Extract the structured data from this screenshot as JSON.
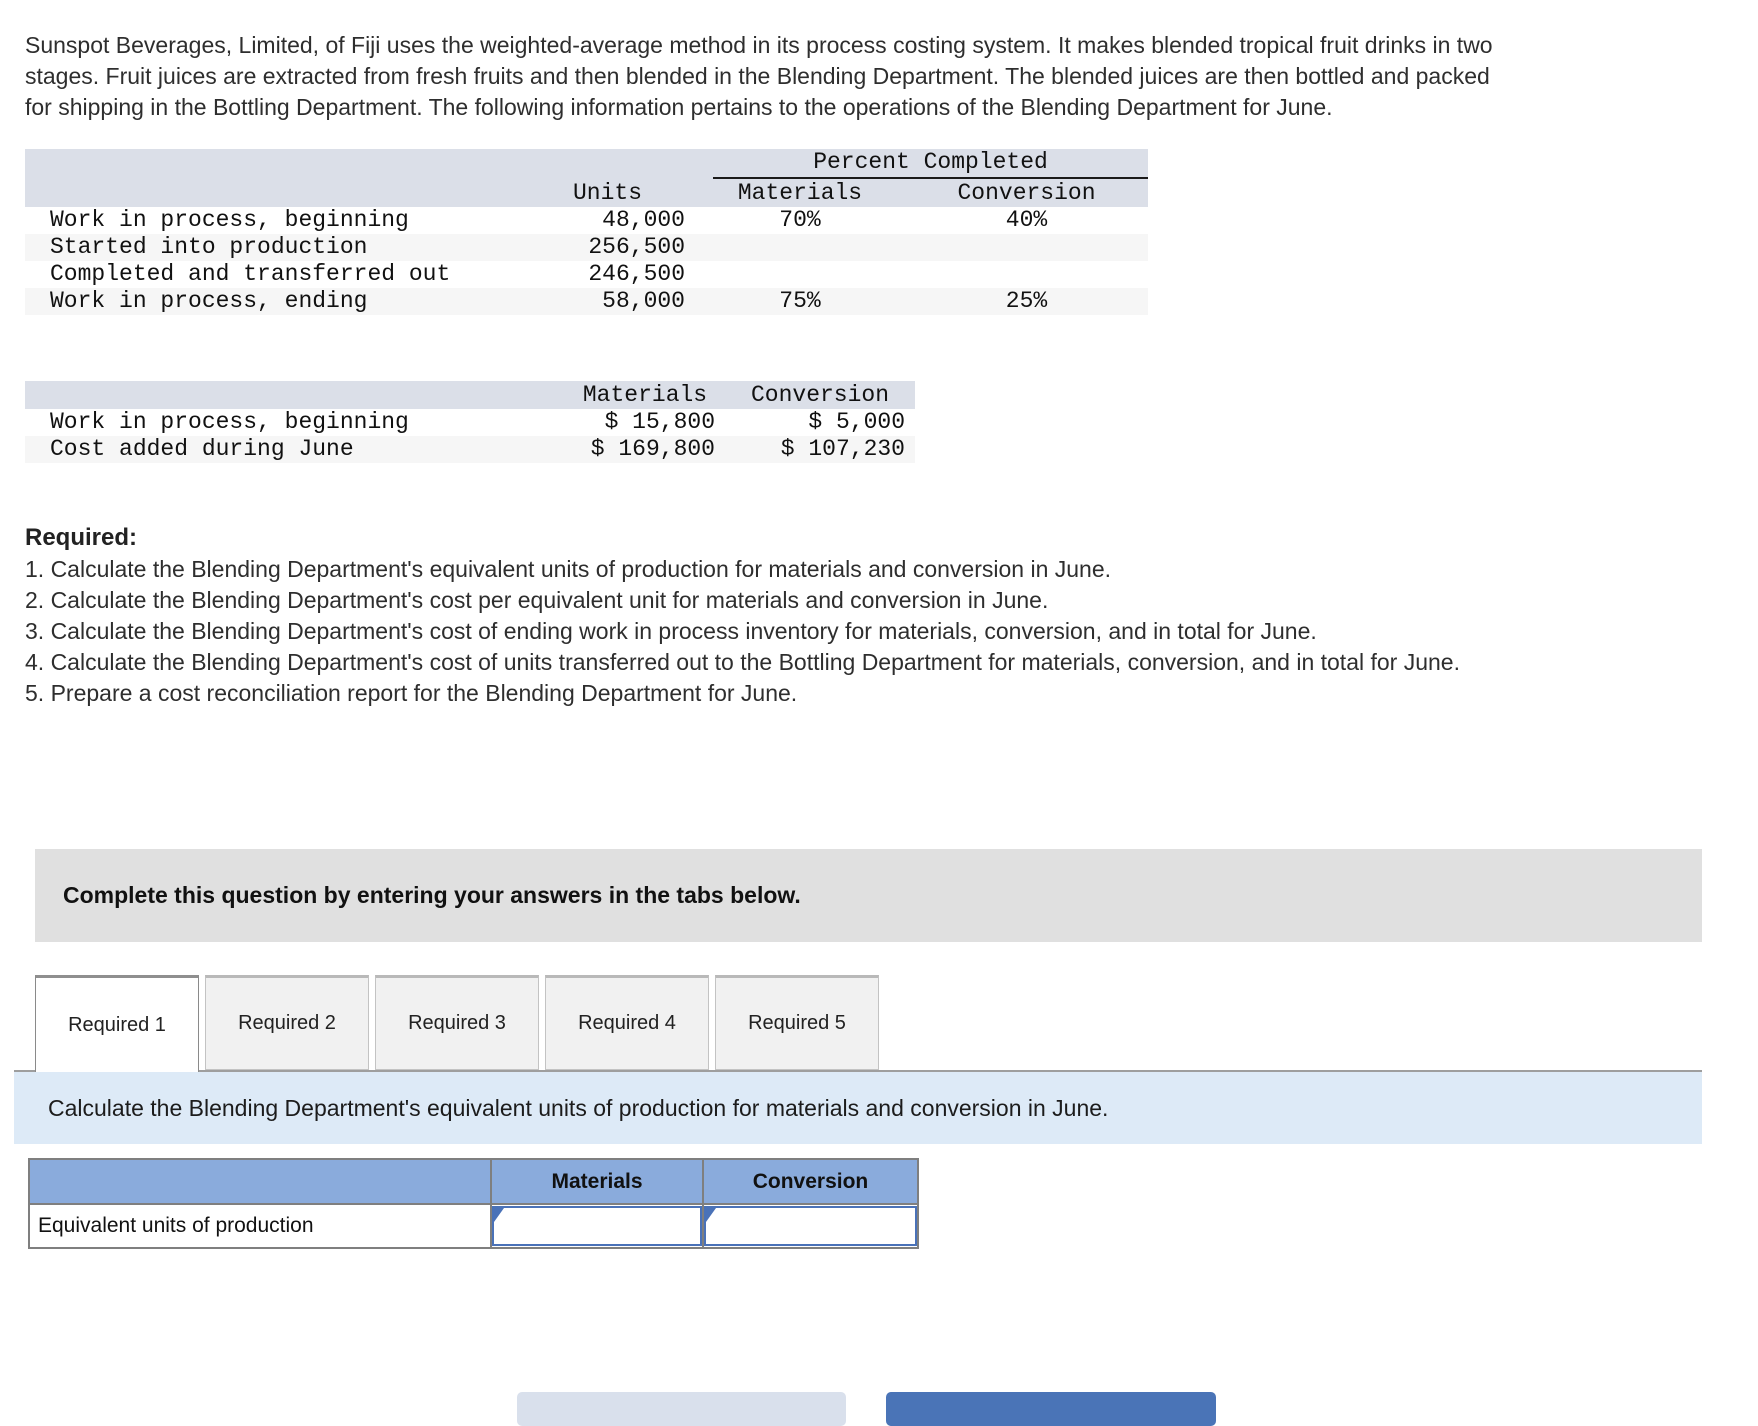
{
  "intro": "Sunspot Beverages, Limited, of Fiji uses the weighted-average method in its process costing system. It makes blended tropical fruit drinks in two stages. Fruit juices are extracted from fresh fruits and then blended in the Blending Department. The blended juices are then bottled and packed for shipping in the Bottling Department. The following information pertains to the operations of the Blending Department for June.",
  "units_table": {
    "group_header": "Percent Completed",
    "col_headers": {
      "units": "Units",
      "materials": "Materials",
      "conversion": "Conversion"
    },
    "rows": [
      {
        "label": "Work in process, beginning",
        "units": "48,000",
        "materials": "70%",
        "conversion": "40%"
      },
      {
        "label": "Started into production",
        "units": "256,500",
        "materials": "",
        "conversion": ""
      },
      {
        "label": "Completed and transferred out",
        "units": "246,500",
        "materials": "",
        "conversion": ""
      },
      {
        "label": "Work in process, ending",
        "units": "58,000",
        "materials": "75%",
        "conversion": "25%"
      }
    ]
  },
  "cost_table": {
    "col_headers": {
      "materials": "Materials",
      "conversion": "Conversion"
    },
    "rows": [
      {
        "label": "Work in process, beginning",
        "materials": "$ 15,800",
        "conversion": "$ 5,000"
      },
      {
        "label": "Cost added during June",
        "materials": "$ 169,800",
        "conversion": "$ 107,230"
      }
    ]
  },
  "required": {
    "heading": "Required:",
    "items": [
      "1. Calculate the Blending Department's equivalent units of production for materials and conversion in June.",
      "2. Calculate the Blending Department's cost per equivalent unit for materials and conversion in June.",
      "3. Calculate the Blending Department's cost of ending work in process inventory for materials, conversion, and in total for June.",
      "4. Calculate the Blending Department's cost of units transferred out to the Bottling Department for materials, conversion, and in total for June.",
      "5. Prepare a cost reconciliation report for the Blending Department for June."
    ]
  },
  "banner": "Complete this question by entering your answers in the tabs below.",
  "tabs": [
    {
      "label": "Required 1"
    },
    {
      "label": "Required 2"
    },
    {
      "label": "Required 3"
    },
    {
      "label": "Required 4"
    },
    {
      "label": "Required 5"
    }
  ],
  "active_tab": "Required 1",
  "instruction": "Calculate the Blending Department's equivalent units of production for materials and conversion in June.",
  "answer_table": {
    "col_headers": {
      "materials": "Materials",
      "conversion": "Conversion"
    },
    "row_label": "Equivalent units of production",
    "materials_value": "",
    "conversion_value": ""
  },
  "colors": {
    "accent_blue": "#4a72b8",
    "answer_header_bg": "#8aabdc",
    "instruction_bg": "#ddeaf7",
    "banner_bg": "#e0e0e0",
    "data_table_header_bg": "#dbdfe8",
    "row_stripe_bg": "#f6f6f6",
    "next_button_bg": "#4a74b7",
    "prev_button_bg": "#d9e0ec"
  }
}
